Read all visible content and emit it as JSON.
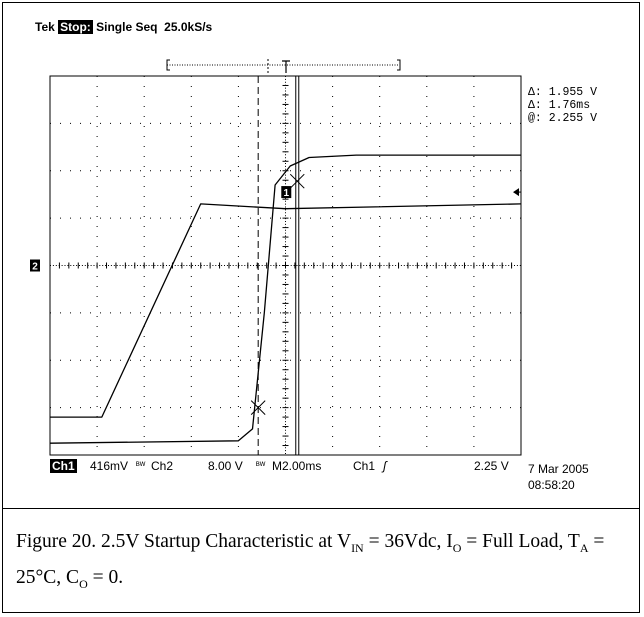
{
  "header": {
    "brand": "Tek",
    "status": "Stop:",
    "mode": "Single Seq",
    "rate": "25.0kS/s"
  },
  "cursor_readout": {
    "delta_v": "Δ: 1.955 V",
    "delta_t": "Δ: 1.76ms",
    "at_v": "@: 2.255 V"
  },
  "channel_markers": {
    "ch1": "1",
    "ch2": "2"
  },
  "footer": {
    "ch1_label": "Ch1",
    "ch1_scale": "416mV",
    "bw1": "ᴮᵂ",
    "ch2_label": "Ch2",
    "ch2_scale": "8.00 V",
    "bw2": "ᴮᵂ",
    "timebase": "M2.00ms",
    "trigger_src": "Ch1",
    "trigger_slope": "ʃ",
    "trigger_level": "2.25 V",
    "date": "7 Mar 2005",
    "time": "08:58:20"
  },
  "caption": {
    "lead": "Figure 20. 2.5V Startup Characteristic at V",
    "vin_sub": "IN",
    "mid": " = 36Vdc, I",
    "io_sub": "O",
    "mid2": " = Full Load, T",
    "ta_sub": "A",
    "mid3": " = 25°C, C",
    "co_sub": "O",
    "tail": " = 0."
  },
  "chart_data": {
    "type": "line",
    "grid": true,
    "x_divisions": 10,
    "y_divisions": 8,
    "xlim": [
      0,
      10
    ],
    "ylim": [
      0,
      8
    ],
    "series": [
      {
        "color": "#000000",
        "points": [
          [
            0,
            0.25
          ],
          [
            4.0,
            0.3
          ],
          [
            4.3,
            0.55
          ],
          [
            4.55,
            3.0
          ],
          [
            4.78,
            5.7
          ],
          [
            5.1,
            6.1
          ],
          [
            5.5,
            6.28
          ],
          [
            6.5,
            6.33
          ],
          [
            10,
            6.33
          ]
        ]
      },
      {
        "color": "#000000",
        "points": [
          [
            0,
            0.8
          ],
          [
            1.1,
            0.8
          ],
          [
            3.2,
            5.3
          ],
          [
            5.0,
            5.2
          ],
          [
            10,
            5.3
          ]
        ]
      }
    ],
    "cursors": {
      "vertical_dashed_x": 4.42,
      "vertical_solid_x": 5.25
    },
    "cursor_crosses": [
      [
        4.42,
        1.0
      ],
      [
        5.25,
        5.78
      ]
    ],
    "ch1_ground_level": 4.0,
    "ch2_reference_level": 5.55
  }
}
